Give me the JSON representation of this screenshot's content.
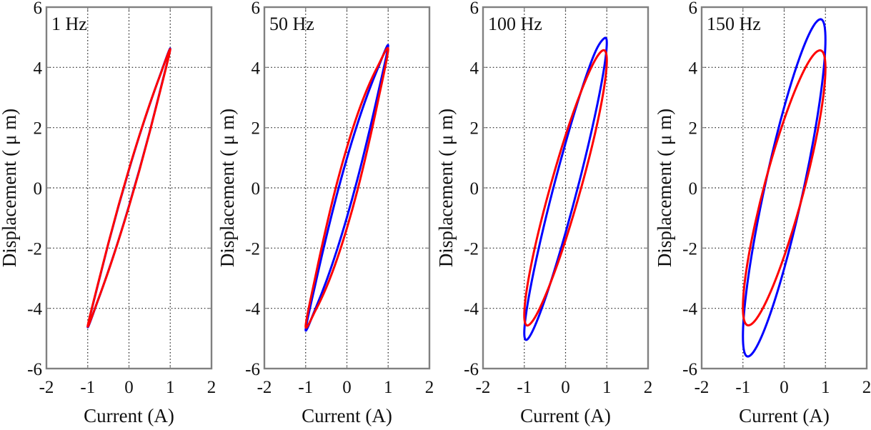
{
  "chart_data": [
    {
      "type": "line",
      "title": "1 Hz",
      "xlabel": "Current (A)",
      "ylabel": "Displacement ( μ m)",
      "xlim": [
        -2,
        2
      ],
      "ylim": [
        -6,
        6
      ],
      "xticks": [
        -2,
        -1,
        0,
        1,
        2
      ],
      "yticks": [
        -6,
        -4,
        -2,
        0,
        2,
        4,
        6
      ],
      "grid": true,
      "series": [
        {
          "name": "blue",
          "color": "#0000ff",
          "x": [
            -1,
            -0.75,
            -0.5,
            -0.25,
            0,
            0.25,
            0.5,
            0.75,
            1,
            0.75,
            0.5,
            0.25,
            0,
            -0.25,
            -0.5,
            -0.75,
            -1
          ],
          "y": [
            -4.62,
            -3.2,
            -1.85,
            -0.59,
            0.6,
            1.72,
            2.76,
            3.73,
            4.62,
            3.2,
            1.85,
            0.59,
            -0.6,
            -1.72,
            -2.76,
            -3.73,
            -4.62
          ]
        },
        {
          "name": "red",
          "color": "#ff0000",
          "x": [
            -1,
            -0.75,
            -0.5,
            -0.25,
            0,
            0.25,
            0.5,
            0.75,
            1,
            0.75,
            0.5,
            0.25,
            0,
            -0.25,
            -0.5,
            -0.75,
            -1
          ],
          "y": [
            -4.6,
            -3.18,
            -1.84,
            -0.57,
            0.62,
            1.73,
            2.77,
            3.72,
            4.6,
            3.18,
            1.84,
            0.57,
            -0.62,
            -1.73,
            -2.77,
            -3.72,
            -4.6
          ]
        }
      ]
    },
    {
      "type": "line",
      "title": "50 Hz",
      "xlabel": "Current (A)",
      "ylabel": "Displacement ( μ m)",
      "xlim": [
        -2,
        2
      ],
      "ylim": [
        -6,
        6
      ],
      "xticks": [
        -2,
        -1,
        0,
        1,
        2
      ],
      "yticks": [
        -6,
        -4,
        -2,
        0,
        2,
        4,
        6
      ],
      "grid": true,
      "series": [
        {
          "name": "blue",
          "color": "#0000ff",
          "x": [
            -1,
            -0.75,
            -0.5,
            -0.25,
            0,
            0.25,
            0.5,
            0.75,
            1,
            0.75,
            0.5,
            0.25,
            0,
            -0.25,
            -0.5,
            -0.75,
            -1
          ],
          "y": [
            -4.72,
            -3.11,
            -1.63,
            -0.26,
            0.98,
            2.1,
            3.1,
            3.97,
            4.72,
            3.11,
            1.63,
            0.26,
            -0.98,
            -2.1,
            -3.1,
            -3.97,
            -4.72
          ]
        },
        {
          "name": "red",
          "color": "#ff0000",
          "x": [
            -1,
            -0.75,
            -0.5,
            -0.25,
            0,
            0.25,
            0.5,
            0.75,
            1,
            0.75,
            0.5,
            0.25,
            0,
            -0.25,
            -0.5,
            -0.75,
            -1
          ],
          "y": [
            -4.6,
            -2.86,
            -1.3,
            0.11,
            1.34,
            2.41,
            3.31,
            4.04,
            4.6,
            2.86,
            1.3,
            -0.11,
            -1.34,
            -2.41,
            -3.31,
            -4.04,
            -4.6
          ]
        }
      ]
    },
    {
      "type": "line",
      "title": "100 Hz",
      "xlabel": "Current (A)",
      "ylabel": "Displacement ( μ m)",
      "xlim": [
        -2,
        2
      ],
      "ylim": [
        -6,
        6
      ],
      "xticks": [
        -2,
        -1,
        0,
        1,
        2
      ],
      "yticks": [
        -6,
        -4,
        -2,
        0,
        2,
        4,
        6
      ],
      "grid": true,
      "series": [
        {
          "name": "blue",
          "color": "#0000ff",
          "x": [
            1,
            0.924,
            0.707,
            0.383,
            0,
            -0.383,
            -0.707,
            -0.924,
            -1,
            -0.924,
            -0.707,
            -0.383,
            0,
            0.383,
            0.707,
            0.924,
            1
          ],
          "y": [
            4.82,
            4.95,
            4.47,
            3.23,
            1.49,
            -0.47,
            -2.36,
            -3.89,
            -4.82,
            -5.03,
            -4.47,
            -3.23,
            -1.49,
            0.47,
            2.36,
            3.89,
            4.82
          ]
        },
        {
          "name": "red",
          "color": "#ff0000",
          "x": [
            1,
            0.924,
            0.707,
            0.383,
            0,
            -0.383,
            -0.707,
            -0.924,
            -1,
            -0.924,
            -0.707,
            -0.383,
            0,
            0.383,
            0.707,
            0.924,
            1
          ],
          "y": [
            4.23,
            4.57,
            4.22,
            3.22,
            1.74,
            -0.02,
            -1.76,
            -3.24,
            -4.23,
            -4.57,
            -4.22,
            -3.22,
            -1.74,
            0.02,
            1.76,
            3.24,
            4.23
          ]
        }
      ]
    },
    {
      "type": "line",
      "title": "150 Hz",
      "xlabel": "Current (A)",
      "ylabel": "Displacement ( μ m)",
      "xlim": [
        -2,
        2
      ],
      "ylim": [
        -6,
        6
      ],
      "xticks": [
        -2,
        -1,
        0,
        1,
        2
      ],
      "yticks": [
        -6,
        -4,
        -2,
        0,
        2,
        4,
        6
      ],
      "grid": true,
      "series": [
        {
          "name": "blue",
          "color": "#0000ff",
          "x": [
            1,
            0.924,
            0.707,
            0.383,
            0,
            -0.383,
            -0.707,
            -0.924,
            -1,
            -0.924,
            -0.707,
            -0.383,
            0,
            0.383,
            0.707,
            0.924,
            1
          ],
          "y": [
            4.92,
            5.57,
            5.37,
            4.36,
            2.68,
            0.59,
            -1.58,
            -3.52,
            -4.92,
            -5.57,
            -5.37,
            -4.36,
            -2.68,
            -0.59,
            1.58,
            3.52,
            4.92
          ]
        },
        {
          "name": "red",
          "color": "#ff0000",
          "x": [
            1,
            0.924,
            0.707,
            0.383,
            0,
            -0.383,
            -0.707,
            -0.924,
            -1,
            -0.924,
            -0.707,
            -0.383,
            0,
            0.383,
            0.707,
            0.924,
            1
          ],
          "y": [
            3.97,
            4.53,
            4.41,
            3.62,
            2.27,
            0.58,
            -1.2,
            -2.8,
            -3.97,
            -4.53,
            -4.41,
            -3.62,
            -2.27,
            -0.58,
            1.2,
            2.8,
            3.97
          ]
        }
      ]
    }
  ]
}
